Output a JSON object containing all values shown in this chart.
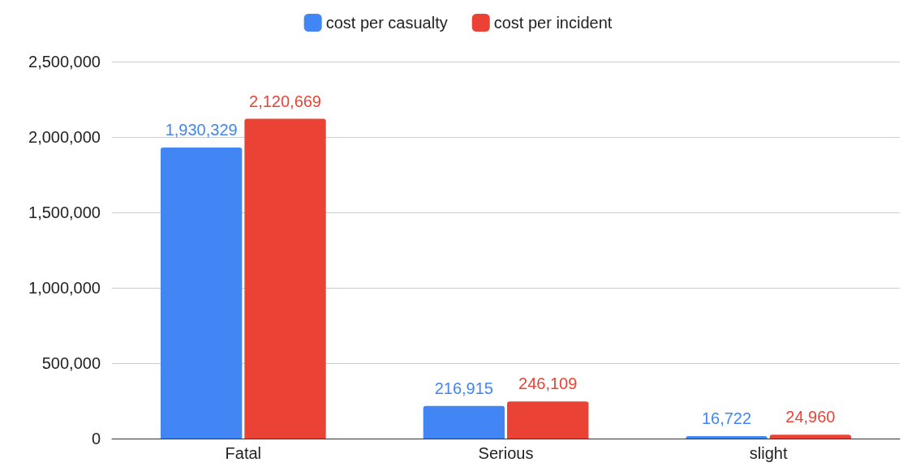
{
  "chart_data": {
    "type": "bar",
    "categories": [
      "Fatal",
      "Serious",
      "slight"
    ],
    "series": [
      {
        "name": "cost per casualty",
        "color": "#4285f4",
        "values": [
          1930329,
          216915,
          16722
        ],
        "value_labels": [
          "1,930,329",
          "216,915",
          "16,722"
        ]
      },
      {
        "name": "cost per incident",
        "color": "#ea4335",
        "values": [
          2120669,
          246109,
          24960
        ],
        "value_labels": [
          "2,120,669",
          "246,109",
          "24,960"
        ]
      }
    ],
    "ylim": [
      0,
      2500000
    ],
    "yticks": [
      0,
      {
        "value": 500000,
        "label": "500,000"
      },
      {
        "value": 1000000,
        "label": "1,000,000"
      },
      {
        "value": 1500000,
        "label": "1,500,000"
      },
      {
        "value": 2000000,
        "label": "2,000,000"
      },
      {
        "value": 2500000,
        "label": "2,500,000"
      }
    ],
    "grid": "y",
    "legend": "top"
  }
}
